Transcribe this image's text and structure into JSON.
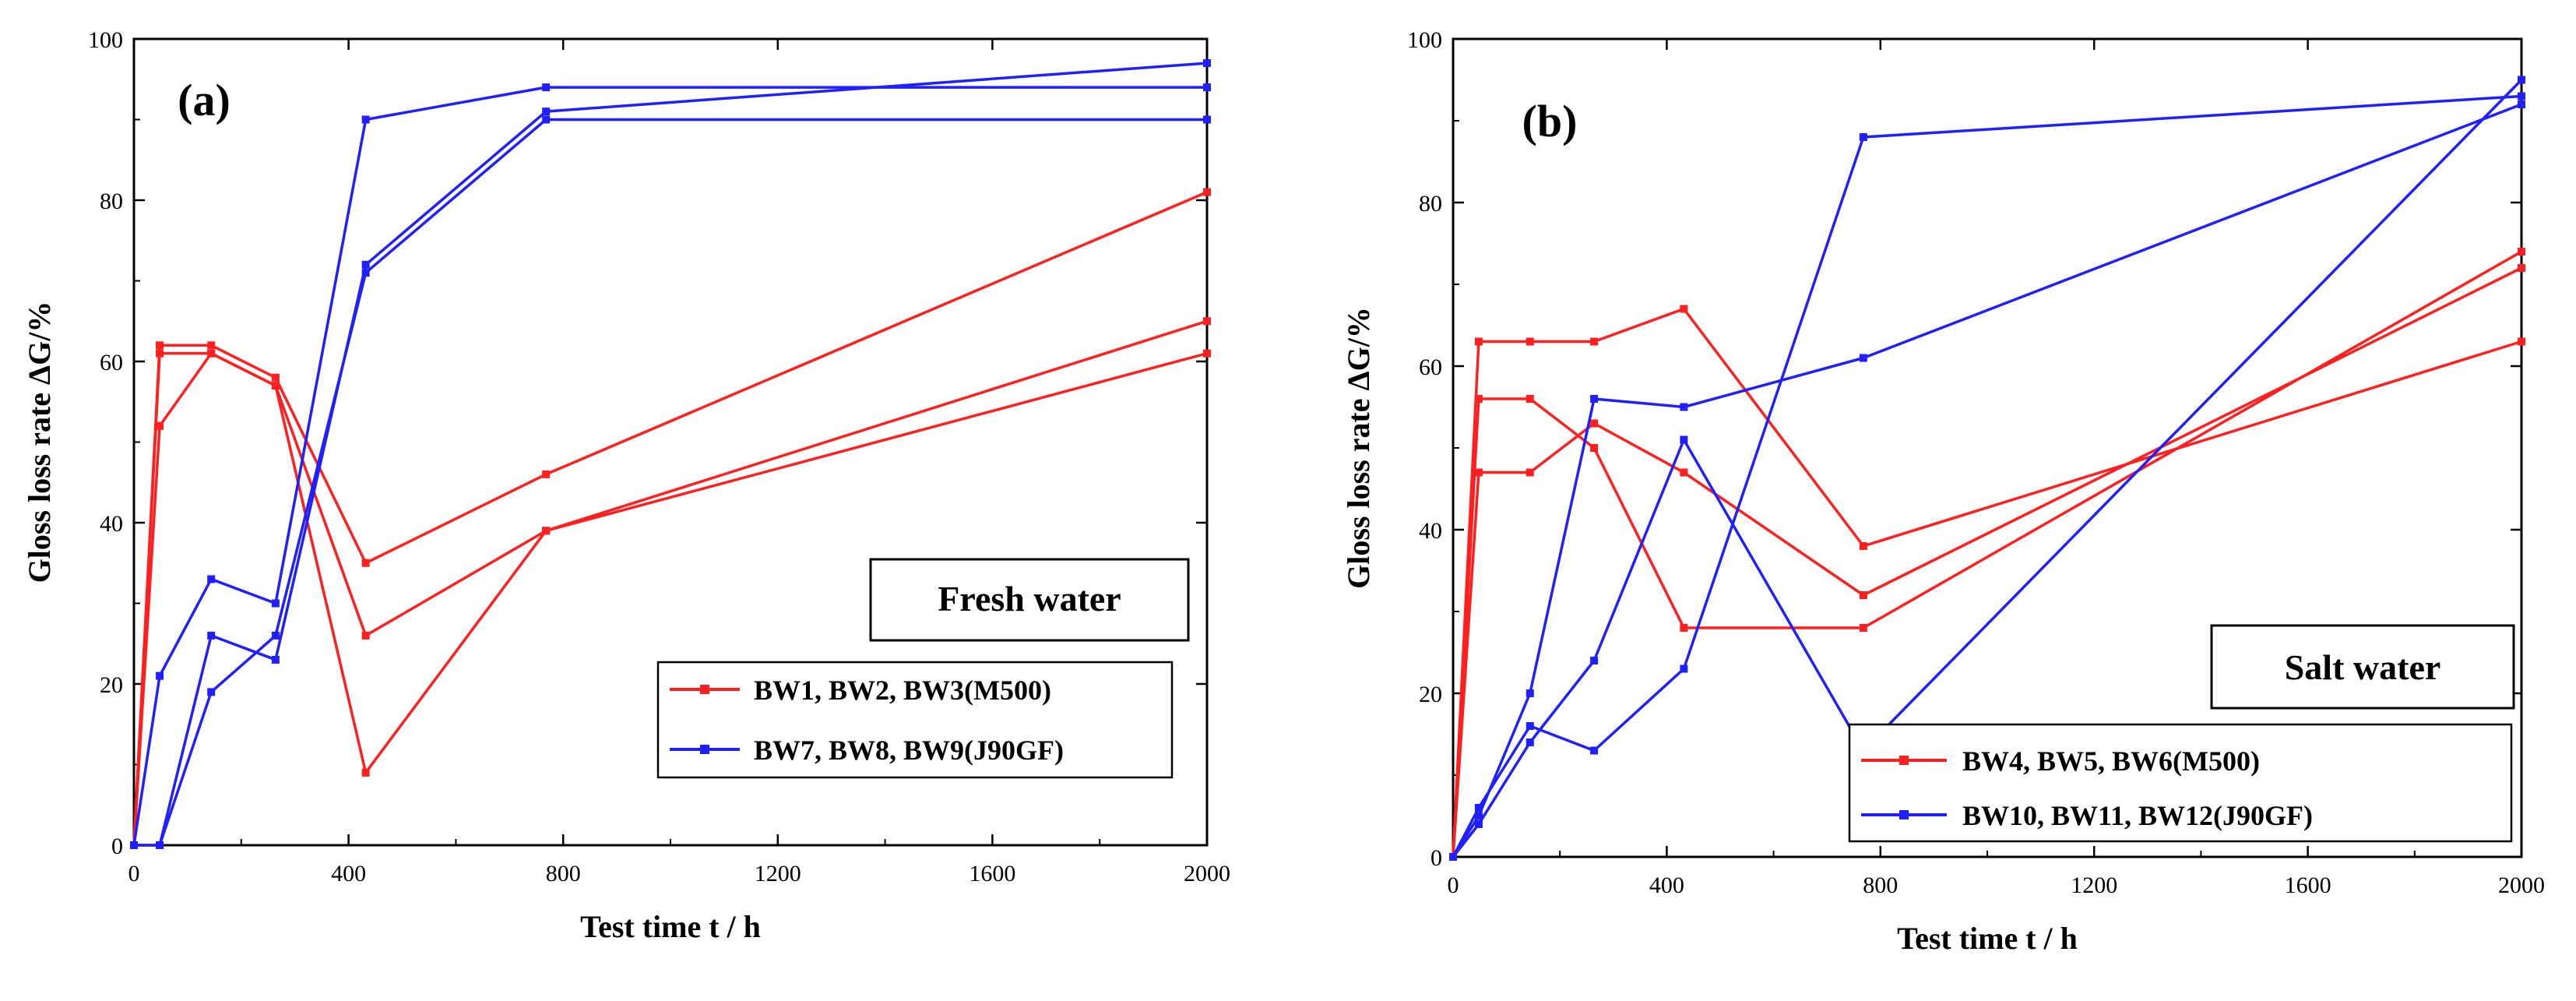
{
  "colors": {
    "red": "#ff1f1f",
    "blue": "#1f1fff",
    "axis": "#000000"
  },
  "chart_data": [
    {
      "type": "line",
      "panel_label": "(a)",
      "annotation": "Fresh water",
      "xlabel": "Test time t / h",
      "ylabel": "Gloss loss rate ΔG/%",
      "xlim": [
        0,
        2000
      ],
      "ylim": [
        0,
        100
      ],
      "xticks": [
        0,
        400,
        800,
        1200,
        1600,
        2000
      ],
      "yticks": [
        0,
        20,
        40,
        60,
        80,
        100
      ],
      "grid": false,
      "legend_position": "bottom-right",
      "legend": [
        {
          "label": "BW1, BW2, BW3(M500)",
          "color": "red"
        },
        {
          "label": "BW7, BW8, BW9(J90GF)",
          "color": "blue"
        }
      ],
      "series": [
        {
          "group": "red",
          "x": [
            0,
            48,
            144,
            264,
            432,
            768,
            2000
          ],
          "y": [
            0,
            62,
            62,
            58,
            35,
            46,
            81
          ]
        },
        {
          "group": "red",
          "x": [
            0,
            48,
            144,
            264,
            432,
            768,
            2000
          ],
          "y": [
            0,
            61,
            61,
            57,
            26,
            39,
            65
          ]
        },
        {
          "group": "red",
          "x": [
            0,
            48,
            144,
            264,
            432,
            768,
            2000
          ],
          "y": [
            0,
            52,
            61,
            57,
            9,
            39,
            61
          ]
        },
        {
          "group": "blue",
          "x": [
            0,
            48,
            144,
            264,
            432,
            768,
            2000
          ],
          "y": [
            0,
            21,
            33,
            30,
            90,
            94,
            94
          ]
        },
        {
          "group": "blue",
          "x": [
            0,
            48,
            144,
            264,
            432,
            768,
            2000
          ],
          "y": [
            0,
            0,
            26,
            23,
            72,
            91,
            97
          ]
        },
        {
          "group": "blue",
          "x": [
            0,
            48,
            144,
            264,
            432,
            768,
            2000
          ],
          "y": [
            0,
            0,
            19,
            26,
            71,
            90,
            90
          ]
        }
      ]
    },
    {
      "type": "line",
      "panel_label": "(b)",
      "annotation": "Salt water",
      "xlabel": "Test time t / h",
      "ylabel": "Gloss loss rate ΔG/%",
      "xlim": [
        0,
        2000
      ],
      "ylim": [
        0,
        100
      ],
      "xticks": [
        0,
        400,
        800,
        1200,
        1600,
        2000
      ],
      "yticks": [
        0,
        20,
        40,
        60,
        80,
        100
      ],
      "grid": false,
      "legend_position": "bottom-right",
      "legend": [
        {
          "label": "BW4, BW5, BW6(M500)",
          "color": "red"
        },
        {
          "label": "BW10, BW11, BW12(J90GF)",
          "color": "blue"
        }
      ],
      "series": [
        {
          "group": "red",
          "x": [
            0,
            48,
            144,
            264,
            432,
            768,
            2000
          ],
          "y": [
            0,
            63,
            63,
            63,
            67,
            38,
            63
          ]
        },
        {
          "group": "red",
          "x": [
            0,
            48,
            144,
            264,
            432,
            768,
            2000
          ],
          "y": [
            0,
            56,
            56,
            50,
            28,
            28,
            74
          ]
        },
        {
          "group": "red",
          "x": [
            0,
            48,
            144,
            264,
            432,
            768,
            2000
          ],
          "y": [
            0,
            47,
            47,
            53,
            47,
            32,
            72
          ]
        },
        {
          "group": "blue",
          "x": [
            0,
            48,
            144,
            264,
            432,
            768,
            2000
          ],
          "y": [
            0,
            6,
            16,
            13,
            23,
            88,
            93
          ]
        },
        {
          "group": "blue",
          "x": [
            0,
            48,
            144,
            264,
            432,
            768,
            2000
          ],
          "y": [
            0,
            5,
            20,
            56,
            55,
            61,
            92
          ]
        },
        {
          "group": "blue",
          "x": [
            0,
            48,
            144,
            264,
            432,
            768,
            2000
          ],
          "y": [
            0,
            4,
            14,
            24,
            51,
            13,
            95
          ]
        }
      ]
    }
  ]
}
